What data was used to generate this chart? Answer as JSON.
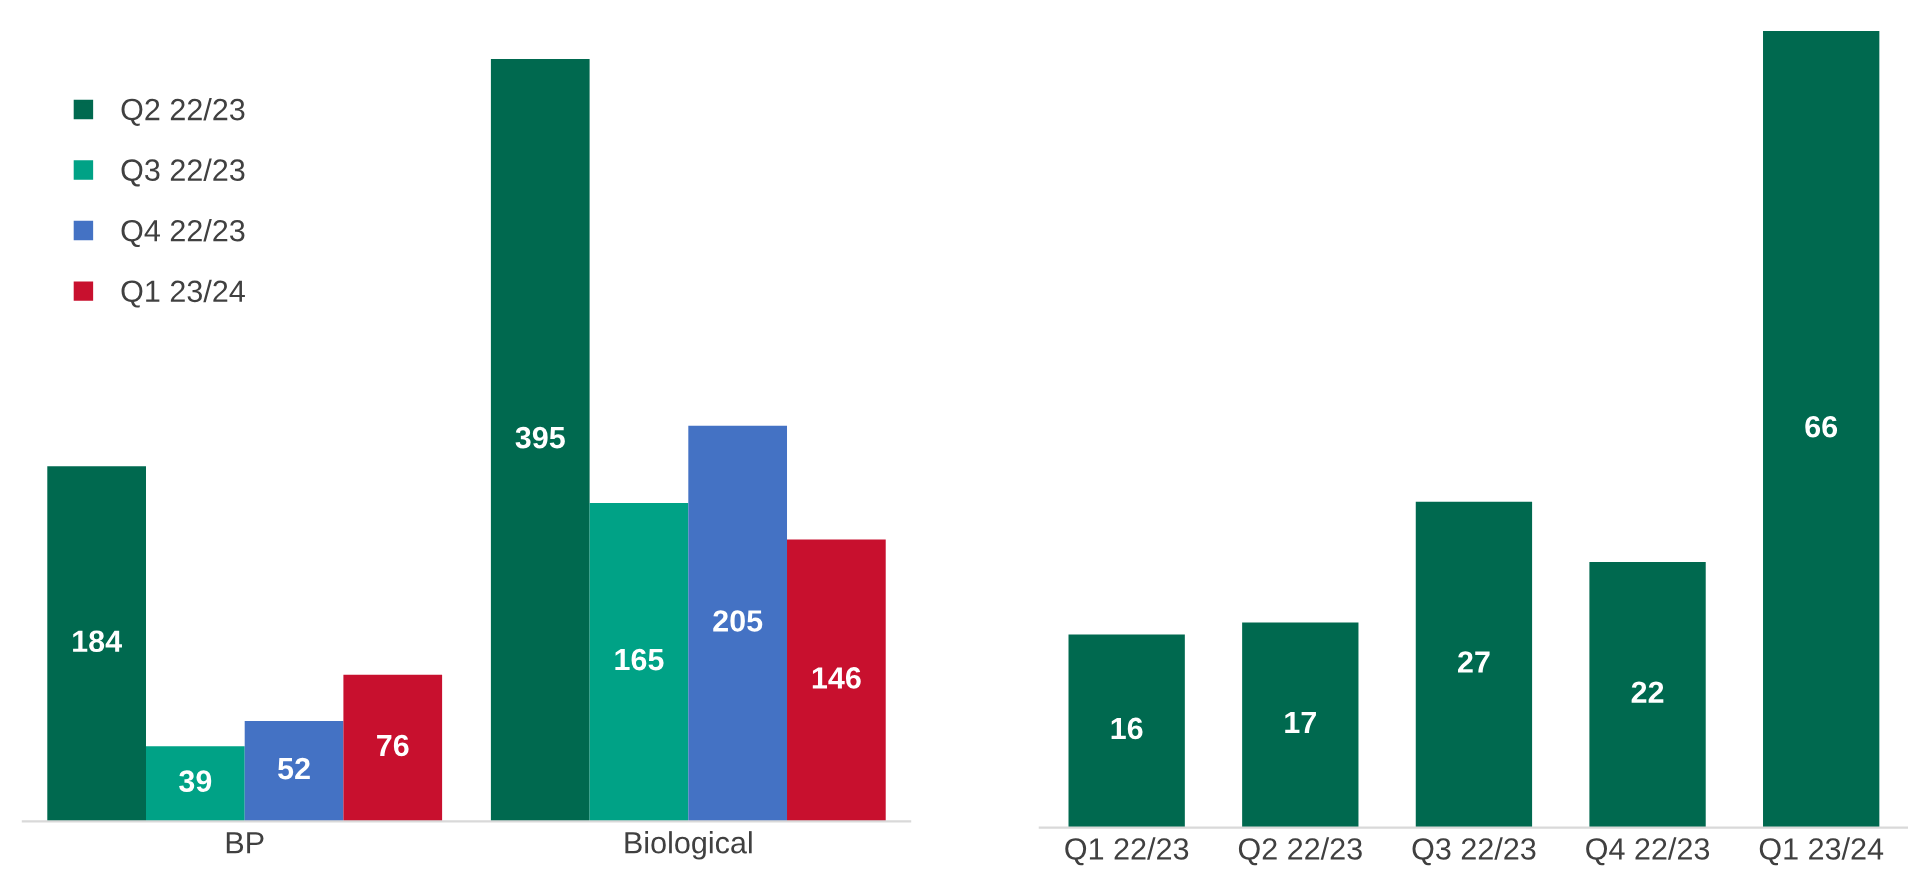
{
  "chart_data": [
    {
      "type": "bar",
      "categories": [
        "BP",
        "Biological"
      ],
      "data_labels": true,
      "legend": "top left",
      "series": [
        {
          "name": "Q2 22/23",
          "color": "#00694f",
          "values": [
            184,
            395
          ]
        },
        {
          "name": "Q3 22/23",
          "color": "#00a286",
          "values": [
            39,
            165
          ]
        },
        {
          "name": "Q4 22/23",
          "color": "#4472c4",
          "values": [
            52,
            205
          ]
        },
        {
          "name": "Q1 23/24",
          "color": "#c8102e",
          "values": [
            76,
            146
          ]
        }
      ]
    },
    {
      "type": "bar",
      "categories": [
        "Q1 22/23",
        "Q2 22/23",
        "Q3 22/23",
        "Q4 22/23",
        "Q1 23/24"
      ],
      "data_labels": true,
      "series": [
        {
          "color": "#00694f",
          "values": [
            16,
            17,
            27,
            22,
            66
          ]
        }
      ]
    }
  ]
}
